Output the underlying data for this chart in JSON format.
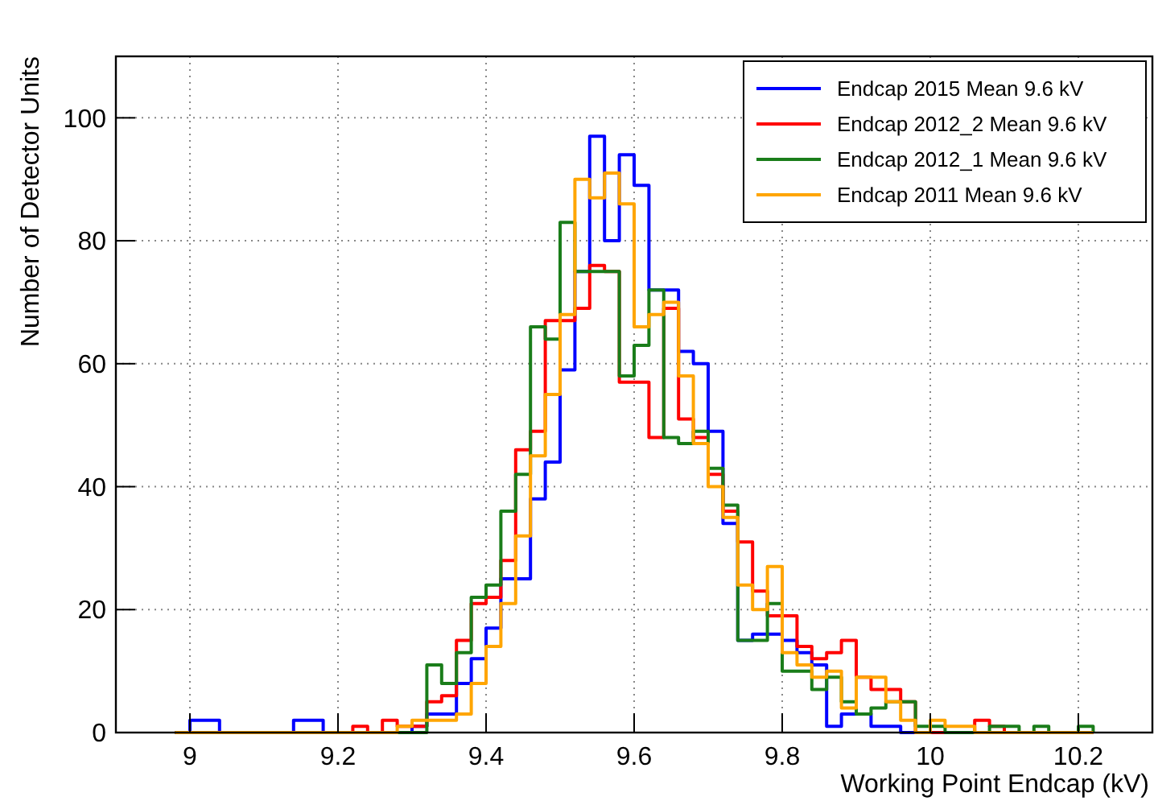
{
  "chart_data": {
    "type": "histogram",
    "xlabel": "Working Point Endcap (kV)",
    "ylabel": "Number of Detector Units",
    "bins": [
      8.98,
      9.0,
      9.02,
      9.04,
      9.06,
      9.08,
      9.1,
      9.12,
      9.14,
      9.16,
      9.18,
      9.2,
      9.22,
      9.24,
      9.26,
      9.28,
      9.3,
      9.32,
      9.34,
      9.36,
      9.38,
      9.4,
      9.42,
      9.44,
      9.46,
      9.48,
      9.5,
      9.52,
      9.54,
      9.56,
      9.58,
      9.6,
      9.62,
      9.64,
      9.66,
      9.68,
      9.7,
      9.72,
      9.74,
      9.76,
      9.78,
      9.8,
      9.82,
      9.84,
      9.86,
      9.88,
      9.9,
      9.92,
      9.94,
      9.96,
      9.98,
      10.0,
      10.02,
      10.04,
      10.06,
      10.08,
      10.1,
      10.12,
      10.14,
      10.16,
      10.18,
      10.2,
      10.22
    ],
    "series": [
      {
        "name": "Endcap 2015 Mean 9.6 kV",
        "color": "#0000ff",
        "values": [
          0,
          2,
          2,
          0,
          0,
          0,
          0,
          0,
          2,
          2,
          0,
          0,
          0,
          0,
          0,
          0,
          1,
          3,
          3,
          8,
          12,
          17,
          25,
          25,
          38,
          44,
          59,
          75,
          97,
          80,
          94,
          89,
          72,
          72,
          62,
          60,
          49,
          34,
          15,
          16,
          16,
          15,
          13,
          11,
          1,
          3,
          3,
          1,
          1,
          0,
          0,
          0,
          0,
          0,
          0,
          0,
          0,
          0,
          0,
          0,
          0,
          0
        ]
      },
      {
        "name": "Endcap 2012_2 Mean 9.6 kV",
        "color": "#ff0000",
        "values": [
          0,
          0,
          0,
          0,
          0,
          0,
          0,
          0,
          0,
          0,
          0,
          0,
          1,
          0,
          2,
          1,
          1,
          5,
          6,
          15,
          21,
          22,
          28,
          46,
          49,
          67,
          67,
          69,
          76,
          75,
          57,
          57,
          48,
          69,
          51,
          48,
          42,
          36,
          31,
          23,
          19,
          19,
          14,
          12,
          13,
          15,
          9,
          7,
          7,
          5,
          0,
          0,
          0,
          0,
          2,
          1,
          0,
          0,
          0,
          0,
          0,
          0
        ]
      },
      {
        "name": "Endcap 2012_1 Mean 9.6 kV",
        "color": "#1a7d1a",
        "values": [
          0,
          0,
          0,
          0,
          0,
          0,
          0,
          0,
          0,
          0,
          0,
          0,
          0,
          0,
          0,
          0,
          0,
          11,
          8,
          13,
          22,
          24,
          36,
          42,
          66,
          64,
          83,
          75,
          75,
          75,
          58,
          63,
          72,
          48,
          47,
          49,
          43,
          37,
          15,
          15,
          21,
          10,
          10,
          7,
          9,
          5,
          3,
          4,
          5,
          5,
          1,
          1,
          0,
          0,
          0,
          1,
          1,
          0,
          1,
          0,
          0,
          1
        ]
      },
      {
        "name": "Endcap 2011 Mean 9.6 kV",
        "color": "#ffa500",
        "values": [
          0,
          0,
          0,
          0,
          0,
          0,
          0,
          0,
          0,
          0,
          0,
          0,
          0,
          0,
          0,
          1,
          2,
          2,
          2,
          3,
          8,
          14,
          21,
          32,
          45,
          55,
          68,
          90,
          87,
          91,
          86,
          66,
          68,
          70,
          58,
          47,
          40,
          35,
          24,
          20,
          27,
          13,
          11,
          9,
          10,
          4,
          9,
          9,
          5,
          2,
          0,
          2,
          1,
          1,
          0,
          0,
          0,
          0,
          0,
          0,
          0,
          0
        ]
      }
    ],
    "xlim": [
      8.9,
      10.3
    ],
    "xticks": [
      9,
      9.2,
      9.4,
      9.6,
      9.8,
      10,
      10.2
    ],
    "ylim": [
      0,
      110
    ],
    "yticks": [
      0,
      20,
      40,
      60,
      80,
      100
    ],
    "grid": true,
    "legend": "top right",
    "line_style": "solid"
  }
}
